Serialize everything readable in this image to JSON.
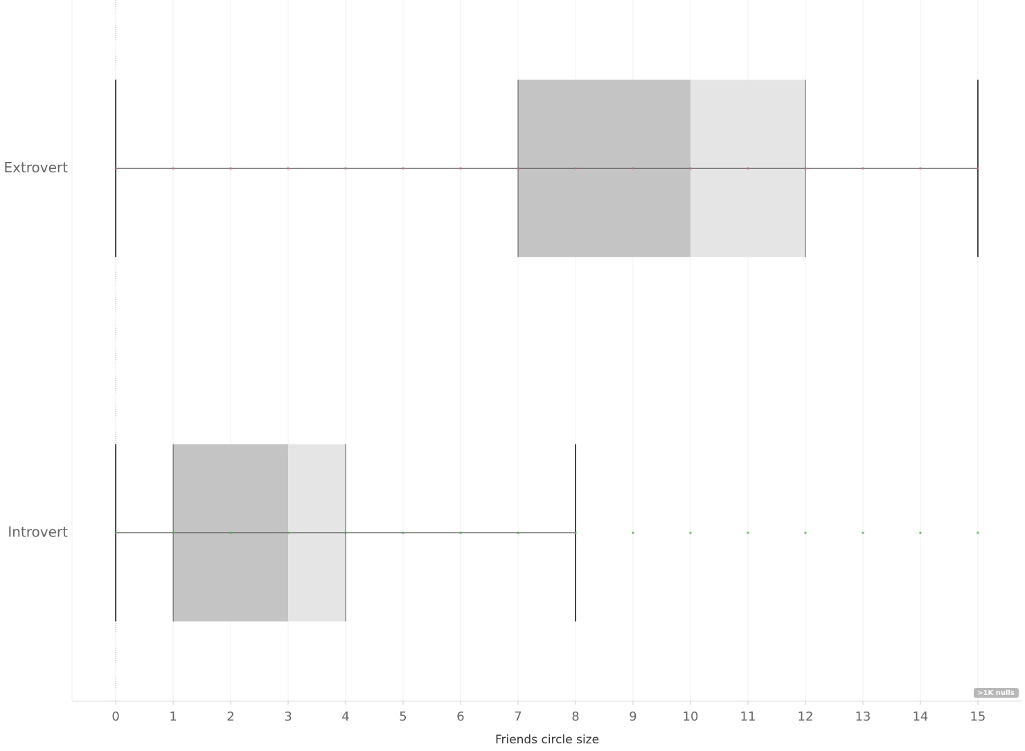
{
  "chart_data": {
    "type": "box",
    "x_label": "Friends circle size",
    "categories": [
      "Extrovert",
      "Introvert"
    ],
    "boxes": [
      {
        "min": 0,
        "q1": 7,
        "median": 10,
        "q3": 12,
        "max": 15,
        "color": "#c0706f",
        "points": [
          0,
          1,
          2,
          3,
          4,
          5,
          6,
          7,
          8,
          9,
          10,
          11,
          12,
          13,
          14,
          15
        ]
      },
      {
        "min": 0,
        "q1": 1,
        "median": 3,
        "q3": 4,
        "max": 8,
        "color": "#4caf50",
        "points": [
          0,
          1,
          2,
          3,
          4,
          5,
          6,
          7,
          8,
          9,
          10,
          11,
          12,
          13,
          14,
          15
        ]
      }
    ],
    "lower_box_color": "#c4c4c4",
    "upper_box_color": "#e5e5e5",
    "xlim": [
      -0.76,
      15.76
    ],
    "xticks": [
      0,
      1,
      2,
      3,
      4,
      5,
      6,
      7,
      8,
      9,
      10,
      11,
      12,
      13,
      14,
      15
    ],
    "grid": true,
    "annotation": ">1K nulls"
  }
}
